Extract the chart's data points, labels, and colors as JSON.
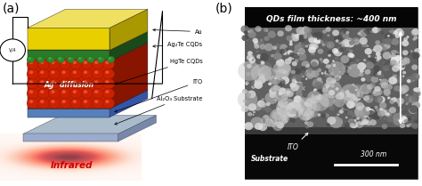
{
  "fig_width": 4.74,
  "fig_height": 2.09,
  "dpi": 100,
  "bg_color": "#ffffff",
  "panel_a_label": "(a)",
  "panel_b_label": "(b)",
  "label_fontsize": 10,
  "au_color": "#e8d000",
  "au_dark": "#aa9800",
  "ag2te_color": "#2a7a2a",
  "ag2te_dark": "#1a4a1a",
  "hgte_color": "#cc2200",
  "hgte_dark": "#881500",
  "ito_color": "#5580bb",
  "ito_dark": "#3355aa",
  "sub_color": "#8899bb",
  "sub_dark": "#6677aa",
  "sub_top_color": "#aabbcc",
  "infrared_text": "Infrared",
  "infrared_color": "#cc0000",
  "sem_title": "QDs film thickness: ~400 nm",
  "sem_title_fontsize": 6.5,
  "sem_ito_label": "ITO",
  "sem_substrate_label": "Substrate",
  "sem_scalebar_label": "300 nm",
  "sem_label_fontsize": 5.5
}
